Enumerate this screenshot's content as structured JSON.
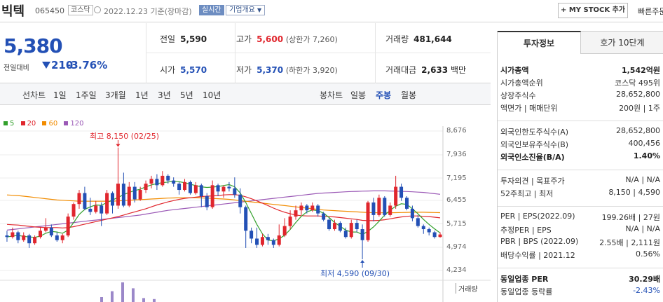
{
  "header": {
    "name": "빅텍",
    "code": "065450",
    "market": "코스닥",
    "date": "2022.12.23 기준(장마감)",
    "live": "실시간",
    "corp": "기업개요",
    "mystock": "+ MY STOCK 추가",
    "quick": "빠른주문"
  },
  "summary": {
    "price": "5,380",
    "change_label": "전일대비",
    "change": "210",
    "change_pct": "-3.76%",
    "prev_label": "전일",
    "prev": "5,590",
    "high_label": "고가",
    "high": "5,600",
    "upper_limit": "(상한가 7,260)",
    "volume_label": "거래량",
    "volume": "481,644",
    "open_label": "시가",
    "open": "5,570",
    "low_label": "저가",
    "low": "5,370",
    "lower_limit": "(하한가 3,920)",
    "amount_label": "거래대금",
    "amount": "2,633",
    "amount_unit": "백만"
  },
  "periods": {
    "line_label": "선차트",
    "line": [
      "1일",
      "1주일",
      "3개월",
      "1년",
      "3년",
      "5년",
      "10년"
    ],
    "candle_label": "봉차트",
    "candle": [
      "일봉",
      "주봉",
      "월봉"
    ],
    "candle_active": "주봉"
  },
  "chart_data": {
    "type": "candlestick",
    "legend": [
      {
        "name": "5",
        "color": "#33a02c"
      },
      {
        "name": "20",
        "color": "#e0262d"
      },
      {
        "name": "60",
        "color": "#f28c00"
      },
      {
        "name": "120",
        "color": "#9b59b6"
      }
    ],
    "yticks": [
      "8,676",
      "7,936",
      "7,195",
      "6,455",
      "5,715",
      "4,974",
      "4,234"
    ],
    "ylim": [
      4234,
      8676
    ],
    "high_label": "최고 8,150 (02/25)",
    "low_label": "최저 4,590 (09/30)",
    "volume_label": "거래량",
    "candles": [
      [
        5350,
        5300,
        5500,
        5150
      ],
      [
        5300,
        5450,
        5600,
        5250
      ],
      [
        5450,
        5200,
        5500,
        5100
      ],
      [
        5200,
        5350,
        5450,
        5150
      ],
      [
        5350,
        5100,
        5400,
        4950
      ],
      [
        5100,
        5300,
        5350,
        5050
      ],
      [
        5300,
        5500,
        5600,
        5250
      ],
      [
        5500,
        5600,
        5900,
        5450
      ],
      [
        5600,
        5350,
        5700,
        5300
      ],
      [
        5350,
        5200,
        5450,
        5150
      ],
      [
        5200,
        5350,
        5400,
        5100
      ],
      [
        5350,
        5950,
        6050,
        5300
      ],
      [
        5950,
        6350,
        6400,
        5850
      ],
      [
        6350,
        6700,
        6800,
        6200
      ],
      [
        6700,
        6200,
        6900,
        6150
      ],
      [
        6200,
        6100,
        6550,
        6000
      ],
      [
        6100,
        6300,
        6450,
        6050
      ],
      [
        6300,
        6050,
        6400,
        5650
      ],
      [
        6050,
        6700,
        6800,
        6000
      ],
      [
        6700,
        6300,
        6750,
        6050
      ],
      [
        6300,
        7000,
        8150,
        6200
      ],
      [
        7000,
        6300,
        7350,
        6250
      ],
      [
        6300,
        6900,
        7050,
        6250
      ],
      [
        6900,
        6500,
        7050,
        6400
      ],
      [
        6500,
        6800,
        6900,
        6450
      ],
      [
        6800,
        7000,
        7100,
        6700
      ],
      [
        7000,
        7150,
        7250,
        6850
      ],
      [
        7150,
        6950,
        7300,
        6800
      ],
      [
        6950,
        7250,
        7400,
        6900
      ],
      [
        7250,
        7100,
        7300,
        7000
      ],
      [
        7100,
        7000,
        7200,
        6900
      ],
      [
        7000,
        6800,
        7050,
        6650
      ],
      [
        6800,
        7050,
        7150,
        6750
      ],
      [
        7050,
        6700,
        7100,
        6650
      ],
      [
        6700,
        6950,
        7050,
        6650
      ],
      [
        6950,
        6600,
        7000,
        6250
      ],
      [
        6600,
        6250,
        6700,
        6150
      ],
      [
        6250,
        6950,
        7100,
        6200
      ],
      [
        6950,
        6750,
        7000,
        6600
      ],
      [
        6750,
        6900,
        6950,
        6550
      ],
      [
        6900,
        6850,
        7050,
        6750
      ],
      [
        6850,
        6650,
        7200,
        6550
      ],
      [
        6650,
        6250,
        6850,
        6050
      ],
      [
        6250,
        5500,
        6300,
        4950
      ],
      [
        5500,
        5250,
        5600,
        5100
      ],
      [
        5250,
        5050,
        5600,
        4950
      ],
      [
        5050,
        5300,
        5400,
        5000
      ],
      [
        5300,
        5200,
        5400,
        5050
      ],
      [
        5200,
        5050,
        5250,
        4950
      ],
      [
        5050,
        5350,
        5700,
        5000
      ],
      [
        5350,
        5650,
        5900,
        5300
      ],
      [
        5650,
        5950,
        6150,
        5550
      ],
      [
        5950,
        6150,
        6300,
        5850
      ],
      [
        6150,
        6300,
        6400,
        6000
      ],
      [
        6300,
        6150,
        6350,
        6050
      ],
      [
        6150,
        6300,
        6400,
        6100
      ],
      [
        6300,
        6050,
        6350,
        5950
      ],
      [
        6050,
        5850,
        6100,
        5800
      ],
      [
        5850,
        5550,
        5900,
        5500
      ],
      [
        5550,
        5750,
        5850,
        5500
      ],
      [
        5750,
        5500,
        5800,
        5450
      ],
      [
        5500,
        5300,
        5600,
        5250
      ],
      [
        5300,
        5750,
        5850,
        5250
      ],
      [
        5750,
        5550,
        5850,
        5450
      ],
      [
        5550,
        5200,
        5700,
        4590
      ],
      [
        5200,
        6400,
        6450,
        5150
      ],
      [
        6400,
        6000,
        6550,
        5800
      ],
      [
        6000,
        6550,
        6650,
        5950
      ],
      [
        6550,
        6000,
        6600,
        5950
      ],
      [
        6000,
        6300,
        6400,
        5950
      ],
      [
        6300,
        6900,
        7250,
        6200
      ],
      [
        6900,
        6550,
        7000,
        6450
      ],
      [
        6550,
        6200,
        6600,
        6150
      ],
      [
        6200,
        5900,
        6300,
        5800
      ],
      [
        5900,
        5650,
        6000,
        5600
      ],
      [
        5650,
        5550,
        5700,
        5400
      ],
      [
        5550,
        5450,
        5600,
        5350
      ],
      [
        5450,
        5300,
        5500,
        5250
      ],
      [
        5300,
        5380,
        5450,
        5280
      ]
    ],
    "volumes": [
      0.25,
      0.55,
      1.0,
      0.7,
      0.2,
      0.15
    ],
    "ma_lines": {
      "ma5": [
        5300,
        5330,
        5350,
        5320,
        5300,
        5290,
        5330,
        5420,
        5480,
        5460,
        5420,
        5520,
        5760,
        6020,
        6180,
        6260,
        6320,
        6310,
        6400,
        6480,
        6560,
        6650,
        6720,
        6780,
        6820,
        6900,
        6960,
        7000,
        7030,
        7050,
        7080,
        7060,
        7030,
        6980,
        6940,
        6900,
        6880,
        6890,
        6910,
        6940,
        6970,
        6900,
        6700,
        6400,
        6050,
        5700,
        5400,
        5200,
        5180,
        5240,
        5360,
        5540,
        5760,
        5960,
        6100,
        6160,
        6140,
        6060,
        5920,
        5760,
        5640,
        5520,
        5460,
        5460,
        5380,
        5480,
        5620,
        5800,
        6000,
        6150,
        6280,
        6360,
        6340,
        6200,
        6040,
        5860,
        5700,
        5560,
        5430
      ],
      "ma20": [
        5700,
        5690,
        5680,
        5660,
        5640,
        5620,
        5610,
        5600,
        5600,
        5600,
        5590,
        5600,
        5630,
        5670,
        5710,
        5750,
        5790,
        5830,
        5870,
        5910,
        5950,
        6000,
        6050,
        6100,
        6150,
        6200,
        6260,
        6320,
        6370,
        6420,
        6460,
        6500,
        6530,
        6550,
        6570,
        6590,
        6600,
        6610,
        6620,
        6640,
        6650,
        6650,
        6630,
        6580,
        6520,
        6450,
        6380,
        6300,
        6220,
        6150,
        6090,
        6040,
        6000,
        5980,
        5970,
        5970,
        5970,
        5960,
        5950,
        5940,
        5920,
        5900,
        5880,
        5860,
        5830,
        5820,
        5820,
        5830,
        5850,
        5880,
        5910,
        5940,
        5960,
        5970,
        5970,
        5960,
        5950,
        5930,
        5910
      ],
      "ma60": [
        6640,
        6630,
        6620,
        6600,
        6580,
        6560,
        6540,
        6520,
        6500,
        6480,
        6470,
        6460,
        6450,
        6440,
        6440,
        6440,
        6440,
        6440,
        6440,
        6440,
        6450,
        6460,
        6470,
        6480,
        6490,
        6500,
        6510,
        6520,
        6530,
        6540,
        6545,
        6550,
        6550,
        6550,
        6550,
        6545,
        6540,
        6530,
        6520,
        6510,
        6500,
        6480,
        6460,
        6440,
        6420,
        6400,
        6380,
        6360,
        6340,
        6320,
        6300,
        6280,
        6260,
        6240,
        6220,
        6200,
        6180,
        6160,
        6150,
        6140,
        6130,
        6120,
        6110,
        6100,
        6090,
        6080,
        6075,
        6070,
        6070,
        6070,
        6075,
        6080,
        6085,
        6090,
        6090,
        6090,
        6085,
        6080,
        6075
      ],
      "ma120": [
        5520,
        5540,
        5560,
        5580,
        5600,
        5620,
        5640,
        5660,
        5680,
        5700,
        5720,
        5740,
        5760,
        5780,
        5800,
        5820,
        5840,
        5860,
        5880,
        5900,
        5920,
        5940,
        5960,
        5980,
        6000,
        6030,
        6060,
        6090,
        6120,
        6150,
        6170,
        6190,
        6210,
        6230,
        6250,
        6270,
        6290,
        6310,
        6330,
        6350,
        6370,
        6390,
        6410,
        6430,
        6450,
        6470,
        6490,
        6510,
        6530,
        6550,
        6570,
        6590,
        6610,
        6630,
        6650,
        6670,
        6690,
        6700,
        6710,
        6720,
        6730,
        6740,
        6750,
        6755,
        6760,
        6765,
        6770,
        6770,
        6770,
        6765,
        6760,
        6755,
        6750,
        6740,
        6730,
        6720,
        6700,
        6680,
        6660
      ]
    }
  },
  "panel": {
    "tab_active": "투자정보",
    "tab_other": "호가 10단계",
    "rows": [
      {
        "l": "시가총액",
        "r": "1,542억원",
        "b": true
      },
      {
        "l": "시가총액순위",
        "r": "코스닥  495위"
      },
      {
        "l": "상장주식수",
        "r": "28,652,800"
      },
      {
        "l": "액면가 | 매매단위",
        "r": "200원 | 1주"
      },
      {
        "l": "외국인한도주식수(A)",
        "r": "28,652,800"
      },
      {
        "l": "외국인보유주식수(B)",
        "r": "400,456"
      },
      {
        "l": "외국인소진율(B/A)",
        "r": "1.40%",
        "b": true
      },
      {
        "l": "투자의견 | 목표주가",
        "r": "N/A | N/A"
      },
      {
        "l": "52주최고 | 최저",
        "r": "8,150 | 4,590"
      },
      {
        "l": "PER | EPS(2022.09)",
        "r": "199.26배 | 27원"
      },
      {
        "l": "추정PER | EPS",
        "r": "N/A | N/A"
      },
      {
        "l": "PBR | BPS (2022.09)",
        "r": "2.55배 | 2,111원"
      },
      {
        "l": "배당수익률 | 2021.12",
        "r": "0.56%"
      },
      {
        "l": "동일업종 PER",
        "r": "30.29배",
        "b": true
      },
      {
        "l": "동일업종 등락률",
        "r": "-2.43%"
      }
    ]
  }
}
